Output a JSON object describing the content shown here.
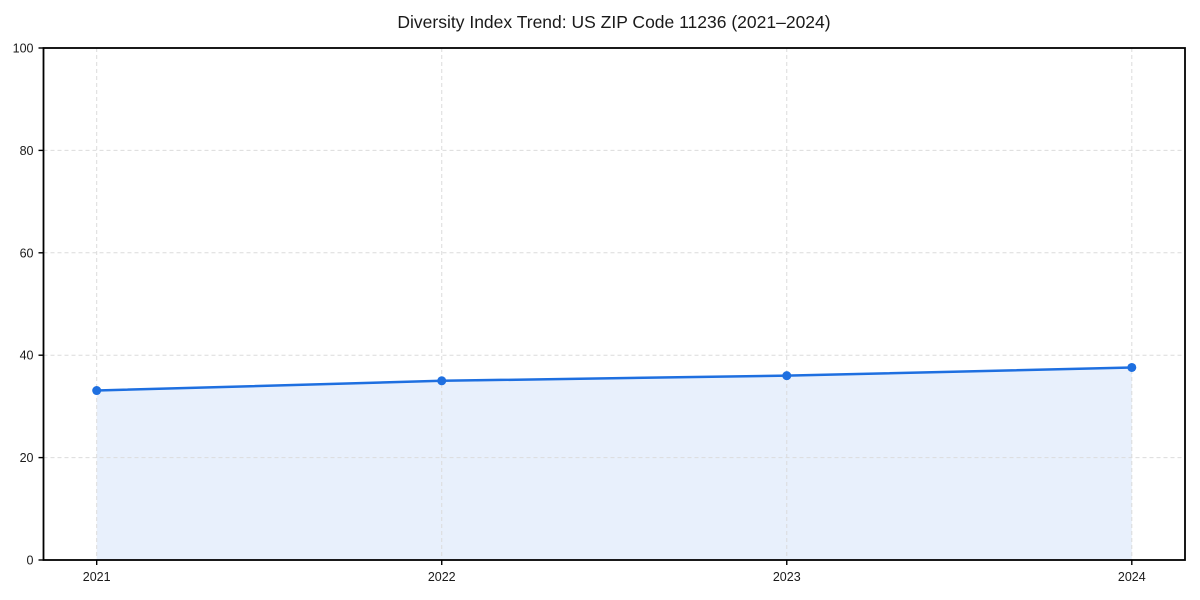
{
  "chart_data": {
    "type": "line",
    "title": "Diversity Index Trend: US ZIP Code 11236 (2021–2024)",
    "x": [
      2021,
      2022,
      2023,
      2024
    ],
    "x_tick_labels": [
      "2021",
      "2022",
      "2023",
      "2024"
    ],
    "series": [
      {
        "name": "Diversity Index",
        "values": [
          33.1,
          35.0,
          36.0,
          37.6
        ]
      }
    ],
    "xlabel": "",
    "ylabel": "",
    "ylim": [
      0,
      100
    ],
    "y_ticks": [
      0,
      20,
      40,
      60,
      80,
      100
    ],
    "y_tick_labels": [
      "0",
      "20",
      "40",
      "60",
      "80",
      "100"
    ],
    "grid": true,
    "grid_style": "dashed",
    "legend": "none",
    "area_fill": true,
    "markers": "circle"
  },
  "colors": {
    "line": "#1E6FE0",
    "marker": "#1E6FE0",
    "area_fill": "rgba(30,111,224,0.10)",
    "grid": "#DBDBDB",
    "axis": "#000000",
    "tick": "#000000",
    "text": "#1A1A1A",
    "background": "#FFFFFF"
  }
}
